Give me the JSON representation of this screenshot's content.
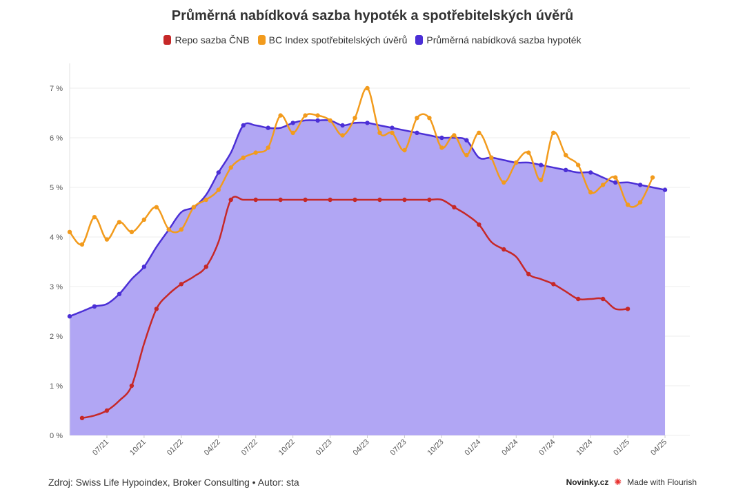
{
  "chart_data": {
    "type": "line",
    "title": "Průměrná nabídková sazba hypoték a spotřebitelských úvěrů",
    "ylim": [
      0,
      7.5
    ],
    "yticks": [
      0,
      1,
      2,
      3,
      4,
      5,
      6,
      7
    ],
    "ytick_suffix": " %",
    "x_start": "2021-04",
    "x_end": "2025-06",
    "xticks": [
      "07/21",
      "10/21",
      "01/22",
      "04/22",
      "07/22",
      "10/22",
      "01/23",
      "04/23",
      "07/23",
      "10/23",
      "01/24",
      "04/24",
      "07/24",
      "10/24",
      "01/25",
      "04/25"
    ],
    "grid": true,
    "legend_position": "top",
    "series": [
      {
        "name": "Repo sazba ČNB",
        "color": "#c62828",
        "fill": false,
        "start": "2021-05",
        "values": [
          0.35,
          0.4,
          0.5,
          0.7,
          1.0,
          1.85,
          2.55,
          2.85,
          3.05,
          3.2,
          3.4,
          3.9,
          4.75,
          4.75,
          4.75,
          4.75,
          4.75,
          4.75,
          4.75,
          4.75,
          4.75,
          4.75,
          4.75,
          4.75,
          4.75,
          4.75,
          4.75,
          4.75,
          4.75,
          4.75,
          4.6,
          4.45,
          4.25,
          3.9,
          3.75,
          3.6,
          3.25,
          3.15,
          3.05,
          2.9,
          2.75,
          2.75,
          2.75,
          2.55,
          2.55
        ]
      },
      {
        "name": "BC Index spotřebitelských úvěrů",
        "color": "#f29b1d",
        "fill": false,
        "start": "2021-04",
        "values": [
          4.1,
          3.85,
          4.4,
          3.95,
          4.3,
          4.1,
          4.35,
          4.6,
          4.15,
          4.15,
          4.6,
          4.75,
          4.95,
          5.4,
          5.6,
          5.7,
          5.8,
          6.45,
          6.1,
          6.45,
          6.45,
          6.35,
          6.05,
          6.4,
          7.0,
          6.1,
          6.1,
          5.75,
          6.4,
          6.4,
          5.8,
          6.05,
          5.65,
          6.1,
          5.6,
          5.1,
          5.5,
          5.7,
          5.15,
          6.1,
          5.65,
          5.45,
          4.9,
          5.05,
          5.2,
          4.65,
          4.7,
          5.2
        ]
      },
      {
        "name": "Průměrná nabídková sazba hypoték",
        "color": "#4b2fd6",
        "fill": true,
        "fill_color": "#b1a6f4",
        "start": "2021-04",
        "values": [
          2.4,
          2.5,
          2.6,
          2.65,
          2.85,
          3.15,
          3.4,
          3.8,
          4.15,
          4.5,
          4.6,
          4.85,
          5.3,
          5.7,
          6.25,
          6.25,
          6.2,
          6.2,
          6.3,
          6.35,
          6.35,
          6.35,
          6.25,
          6.3,
          6.3,
          6.25,
          6.2,
          6.15,
          6.1,
          6.05,
          6.0,
          6.0,
          5.95,
          5.6,
          5.6,
          5.55,
          5.5,
          5.5,
          5.45,
          5.4,
          5.35,
          5.3,
          5.3,
          5.2,
          5.1,
          5.1,
          5.05,
          5.0,
          4.95
        ]
      }
    ]
  },
  "footer": {
    "source": "Zdroj: Swiss Life Hypoindex, Broker Consulting • Autor: sta",
    "brand": "Novinky.cz",
    "made_with": "Made with Flourish"
  },
  "icons": {
    "flourish": "flourish-burst-icon"
  }
}
